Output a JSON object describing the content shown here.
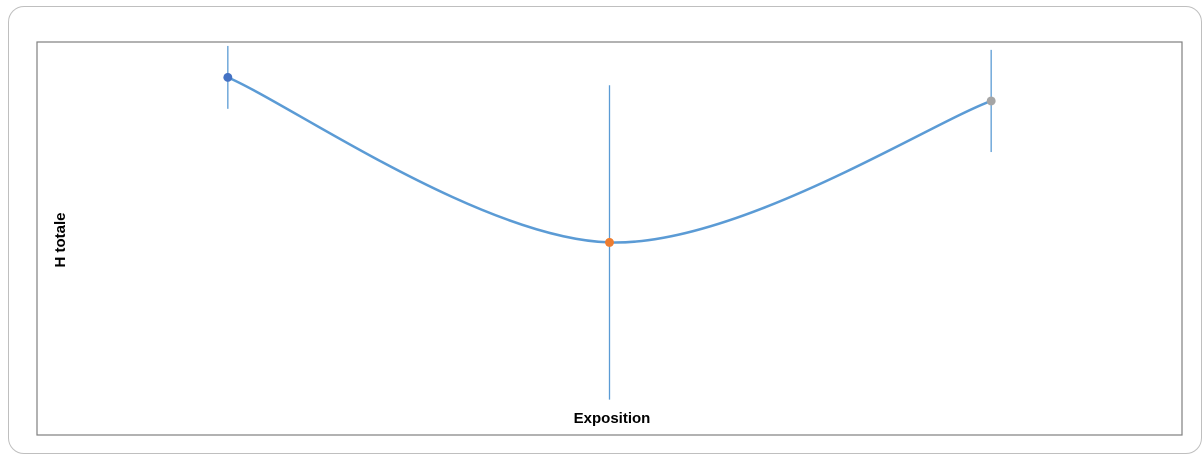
{
  "chart_data": {
    "type": "line",
    "xlabel": "Exposition",
    "ylabel": "H totale",
    "smooth": true,
    "grid": false,
    "legend": "none",
    "ylim": [
      0,
      1
    ],
    "x": [
      1,
      2,
      3
    ],
    "series": [
      {
        "values": [
          0.91,
          0.49,
          0.85
        ],
        "error": [
          0.08,
          0.4,
          0.13
        ],
        "point_colors": [
          "#4472c4",
          "#ed7d31",
          "#a5a5a5"
        ],
        "line_color": "#5b9bd5"
      }
    ]
  }
}
